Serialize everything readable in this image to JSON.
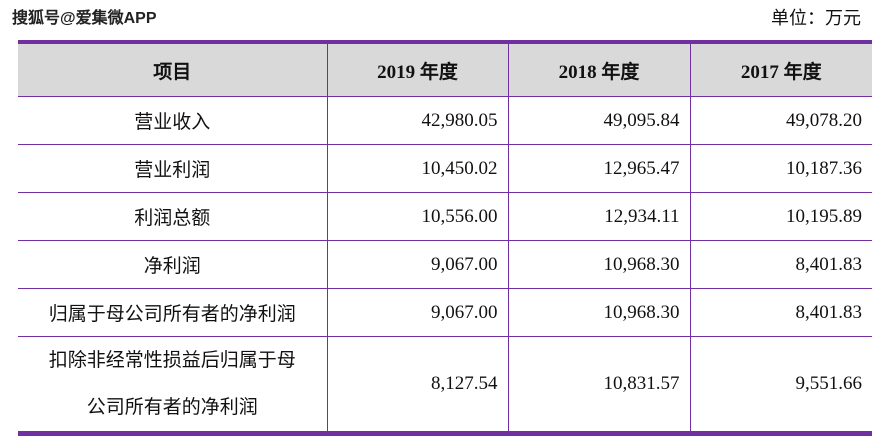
{
  "header": {
    "watermark": "搜狐号@爱集微APP",
    "unit": "单位：万元"
  },
  "table": {
    "columns": [
      "项目",
      "2019 年度",
      "2018 年度",
      "2017 年度"
    ],
    "rows": [
      [
        "营业收入",
        "42,980.05",
        "49,095.84",
        "49,078.20"
      ],
      [
        "营业利润",
        "10,450.02",
        "12,965.47",
        "10,187.36"
      ],
      [
        "利润总额",
        "10,556.00",
        "12,934.11",
        "10,195.89"
      ],
      [
        "净利润",
        "9,067.00",
        "10,968.30",
        "8,401.83"
      ],
      [
        "归属于母公司所有者的净利润",
        "9,067.00",
        "10,968.30",
        "8,401.83"
      ],
      [
        [
          "扣除非经常性损益后归属于母",
          "公司所有者的净利润"
        ],
        "8,127.54",
        "10,831.57",
        "9,551.66"
      ]
    ]
  }
}
